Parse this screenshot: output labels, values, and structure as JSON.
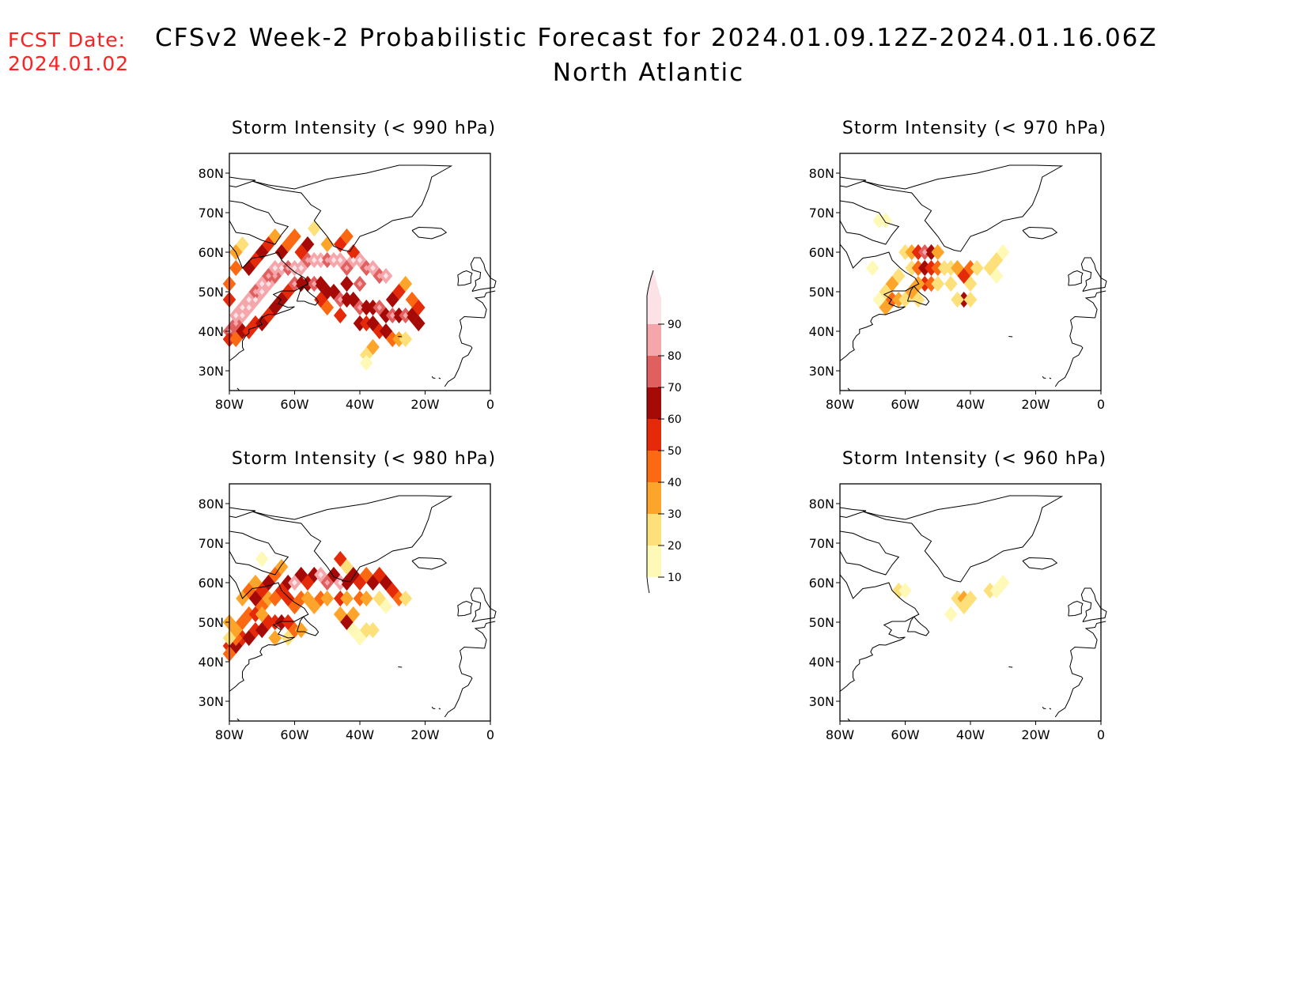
{
  "forecast_date": {
    "label": "FCST Date:",
    "value": "2024.01.02"
  },
  "title": "CFSv2 Week-2 Probabilistic Forecast for 2024.01.09.12Z-2024.01.16.06Z",
  "subtitle": "North Atlantic",
  "colorbar": {
    "levels": [
      "10",
      "20",
      "30",
      "40",
      "50",
      "60",
      "70",
      "80",
      "90"
    ],
    "colors": [
      "#fff9b8",
      "#fde07a",
      "#fda42a",
      "#fb6a12",
      "#e42a08",
      "#a60a06",
      "#e06060",
      "#f4a6aa",
      "#fbe2e6"
    ]
  },
  "axes": {
    "lon_labels": [
      "80W",
      "60W",
      "40W",
      "20W",
      "0"
    ],
    "lat_labels": [
      "80N",
      "70N",
      "60N",
      "50N",
      "40N",
      "30N"
    ]
  },
  "panels": [
    {
      "id": "p990",
      "title": "Storm Intensity (< 990 hPa)",
      "cells": [
        [
          -80,
          40,
          7
        ],
        [
          -78,
          42,
          7
        ],
        [
          -78,
          44,
          8
        ],
        [
          -76,
          44,
          8
        ],
        [
          -76,
          46,
          8
        ],
        [
          -74,
          46,
          8
        ],
        [
          -74,
          48,
          8
        ],
        [
          -72,
          48,
          8
        ],
        [
          -72,
          50,
          7
        ],
        [
          -70,
          50,
          8
        ],
        [
          -70,
          52,
          8
        ],
        [
          -68,
          52,
          8
        ],
        [
          -68,
          54,
          7
        ],
        [
          -66,
          54,
          7
        ],
        [
          -66,
          56,
          8
        ],
        [
          -64,
          56,
          8
        ],
        [
          -62,
          56,
          7
        ],
        [
          -60,
          56,
          8
        ],
        [
          -58,
          56,
          8
        ],
        [
          -56,
          58,
          7
        ],
        [
          -54,
          58,
          8
        ],
        [
          -52,
          58,
          8
        ],
        [
          -50,
          58,
          7
        ],
        [
          -48,
          58,
          8
        ],
        [
          -46,
          58,
          8
        ],
        [
          -44,
          56,
          7
        ],
        [
          -42,
          58,
          8
        ],
        [
          -40,
          58,
          8
        ],
        [
          -38,
          56,
          7
        ],
        [
          -36,
          56,
          8
        ],
        [
          -34,
          54,
          7
        ],
        [
          -32,
          54,
          8
        ],
        [
          -60,
          52,
          7
        ],
        [
          -58,
          52,
          6
        ],
        [
          -56,
          52,
          6
        ],
        [
          -54,
          52,
          7
        ],
        [
          -52,
          52,
          6
        ],
        [
          -50,
          50,
          6
        ],
        [
          -48,
          50,
          6
        ],
        [
          -46,
          48,
          7
        ],
        [
          -44,
          48,
          6
        ],
        [
          -42,
          48,
          6
        ],
        [
          -40,
          46,
          7
        ],
        [
          -38,
          46,
          6
        ],
        [
          -36,
          46,
          6
        ],
        [
          -34,
          46,
          7
        ],
        [
          -32,
          44,
          6
        ],
        [
          -30,
          44,
          7
        ],
        [
          -28,
          44,
          6
        ],
        [
          -26,
          44,
          7
        ],
        [
          -24,
          44,
          6
        ],
        [
          -22,
          42,
          6
        ],
        [
          -40,
          42,
          6
        ],
        [
          -38,
          42,
          5
        ],
        [
          -36,
          42,
          6
        ],
        [
          -34,
          40,
          5
        ],
        [
          -32,
          40,
          6
        ],
        [
          -30,
          38,
          4
        ],
        [
          -28,
          38,
          3
        ],
        [
          -26,
          38,
          2
        ],
        [
          -36,
          36,
          3
        ],
        [
          -38,
          34,
          2
        ],
        [
          -38,
          32,
          1
        ],
        [
          -80,
          38,
          5
        ],
        [
          -78,
          38,
          4
        ],
        [
          -76,
          40,
          6
        ],
        [
          -74,
          40,
          5
        ],
        [
          -72,
          42,
          5
        ],
        [
          -70,
          42,
          6
        ],
        [
          -68,
          44,
          5
        ],
        [
          -66,
          46,
          6
        ],
        [
          -64,
          48,
          6
        ],
        [
          -62,
          50,
          5
        ],
        [
          -74,
          56,
          6
        ],
        [
          -72,
          58,
          5
        ],
        [
          -70,
          60,
          6
        ],
        [
          -68,
          62,
          5
        ],
        [
          -64,
          60,
          6
        ],
        [
          -62,
          62,
          4
        ],
        [
          -58,
          60,
          5
        ],
        [
          -50,
          62,
          3
        ],
        [
          -46,
          62,
          5
        ],
        [
          -44,
          64,
          4
        ],
        [
          -54,
          66,
          2
        ],
        [
          -78,
          56,
          4
        ],
        [
          -78,
          60,
          3
        ],
        [
          -76,
          62,
          2
        ],
        [
          -80,
          52,
          4
        ],
        [
          -80,
          48,
          5
        ],
        [
          -60,
          64,
          4
        ],
        [
          -66,
          64,
          3
        ],
        [
          -56,
          62,
          6
        ],
        [
          -42,
          60,
          5
        ],
        [
          -40,
          52,
          7
        ],
        [
          -44,
          52,
          6
        ],
        [
          -46,
          44,
          5
        ],
        [
          -50,
          46,
          4
        ],
        [
          -52,
          48,
          5
        ],
        [
          -30,
          48,
          6
        ],
        [
          -28,
          50,
          5
        ],
        [
          -26,
          52,
          3
        ],
        [
          -24,
          48,
          4
        ],
        [
          -22,
          46,
          5
        ]
      ]
    },
    {
      "id": "p970",
      "title": "Storm Intensity (< 970 hPa)",
      "cells": [
        [
          -68,
          68,
          1
        ],
        [
          -66,
          68,
          1
        ],
        [
          -60,
          60,
          2
        ],
        [
          -58,
          60,
          3
        ],
        [
          -56,
          60,
          5
        ],
        [
          -54,
          60,
          7
        ],
        [
          -52,
          60,
          6
        ],
        [
          -50,
          60,
          3
        ],
        [
          -58,
          56,
          2
        ],
        [
          -56,
          56,
          4
        ],
        [
          -54,
          56,
          6
        ],
        [
          -52,
          56,
          5
        ],
        [
          -50,
          56,
          4
        ],
        [
          -48,
          56,
          2
        ],
        [
          -54,
          52,
          5
        ],
        [
          -52,
          52,
          4
        ],
        [
          -56,
          52,
          3
        ],
        [
          -50,
          52,
          2
        ],
        [
          -62,
          54,
          2
        ],
        [
          -64,
          52,
          3
        ],
        [
          -66,
          50,
          2
        ],
        [
          -64,
          48,
          4
        ],
        [
          -62,
          48,
          3
        ],
        [
          -60,
          48,
          2
        ],
        [
          -68,
          48,
          1
        ],
        [
          -66,
          46,
          3
        ],
        [
          -58,
          50,
          3
        ],
        [
          -56,
          48,
          2
        ],
        [
          -46,
          56,
          2
        ],
        [
          -44,
          56,
          3
        ],
        [
          -42,
          54,
          5
        ],
        [
          -40,
          56,
          4
        ],
        [
          -38,
          56,
          2
        ],
        [
          -40,
          52,
          2
        ],
        [
          -46,
          52,
          2
        ],
        [
          -42,
          48,
          6
        ],
        [
          -44,
          48,
          2
        ],
        [
          -40,
          48,
          2
        ],
        [
          -34,
          56,
          2
        ],
        [
          -32,
          58,
          2
        ],
        [
          -30,
          60,
          1
        ],
        [
          -32,
          54,
          1
        ],
        [
          -70,
          56,
          1
        ]
      ]
    },
    {
      "id": "p980",
      "title": "Storm Intensity (< 980 hPa)",
      "cells": [
        [
          -80,
          44,
          5
        ],
        [
          -78,
          44,
          6
        ],
        [
          -76,
          46,
          5
        ],
        [
          -74,
          46,
          6
        ],
        [
          -72,
          48,
          5
        ],
        [
          -70,
          48,
          6
        ],
        [
          -68,
          50,
          5
        ],
        [
          -66,
          50,
          5
        ],
        [
          -64,
          50,
          6
        ],
        [
          -62,
          50,
          5
        ],
        [
          -60,
          48,
          4
        ],
        [
          -58,
          48,
          3
        ],
        [
          -78,
          46,
          4
        ],
        [
          -80,
          42,
          4
        ],
        [
          -78,
          48,
          3
        ],
        [
          -76,
          50,
          4
        ],
        [
          -74,
          52,
          4
        ],
        [
          -72,
          52,
          5
        ],
        [
          -70,
          54,
          4
        ],
        [
          -68,
          56,
          3
        ],
        [
          -66,
          56,
          4
        ],
        [
          -64,
          58,
          5
        ],
        [
          -62,
          60,
          6
        ],
        [
          -60,
          60,
          8
        ],
        [
          -58,
          62,
          6
        ],
        [
          -56,
          60,
          5
        ],
        [
          -54,
          62,
          6
        ],
        [
          -52,
          62,
          8
        ],
        [
          -50,
          60,
          7
        ],
        [
          -48,
          62,
          6
        ],
        [
          -46,
          60,
          8
        ],
        [
          -44,
          60,
          6
        ],
        [
          -42,
          62,
          6
        ],
        [
          -40,
          60,
          5
        ],
        [
          -38,
          62,
          4
        ],
        [
          -36,
          60,
          6
        ],
        [
          -34,
          62,
          5
        ],
        [
          -32,
          60,
          6
        ],
        [
          -30,
          58,
          5
        ],
        [
          -28,
          56,
          4
        ],
        [
          -26,
          56,
          2
        ],
        [
          -62,
          56,
          5
        ],
        [
          -60,
          54,
          4
        ],
        [
          -58,
          56,
          4
        ],
        [
          -56,
          56,
          3
        ],
        [
          -54,
          54,
          3
        ],
        [
          -52,
          56,
          4
        ],
        [
          -50,
          56,
          3
        ],
        [
          -46,
          56,
          5
        ],
        [
          -44,
          56,
          3
        ],
        [
          -40,
          56,
          4
        ],
        [
          -38,
          56,
          3
        ],
        [
          -34,
          56,
          2
        ],
        [
          -32,
          54,
          1
        ],
        [
          -76,
          56,
          3
        ],
        [
          -74,
          58,
          4
        ],
        [
          -72,
          60,
          3
        ],
        [
          -70,
          58,
          5
        ],
        [
          -68,
          60,
          6
        ],
        [
          -72,
          56,
          6
        ],
        [
          -70,
          52,
          3
        ],
        [
          -66,
          62,
          4
        ],
        [
          -64,
          64,
          3
        ],
        [
          -70,
          66,
          1
        ],
        [
          -46,
          66,
          5
        ],
        [
          -44,
          64,
          2
        ],
        [
          -46,
          52,
          3
        ],
        [
          -44,
          50,
          6
        ],
        [
          -42,
          52,
          3
        ],
        [
          -42,
          48,
          1
        ],
        [
          -38,
          48,
          2
        ],
        [
          -40,
          46,
          1
        ],
        [
          -36,
          48,
          2
        ],
        [
          -80,
          50,
          3
        ],
        [
          -80,
          46,
          2
        ],
        [
          -66,
          46,
          3
        ],
        [
          -62,
          46,
          2
        ]
      ]
    },
    {
      "id": "p960",
      "title": "Storm Intensity (< 960 hPa)",
      "cells": [
        [
          -62,
          58,
          2
        ],
        [
          -60,
          58,
          1
        ],
        [
          -44,
          56,
          2
        ],
        [
          -42,
          56,
          3
        ],
        [
          -40,
          56,
          2
        ],
        [
          -42,
          54,
          2
        ],
        [
          -46,
          52,
          1
        ],
        [
          -34,
          58,
          2
        ],
        [
          -32,
          58,
          1
        ],
        [
          -30,
          60,
          1
        ]
      ]
    }
  ]
}
